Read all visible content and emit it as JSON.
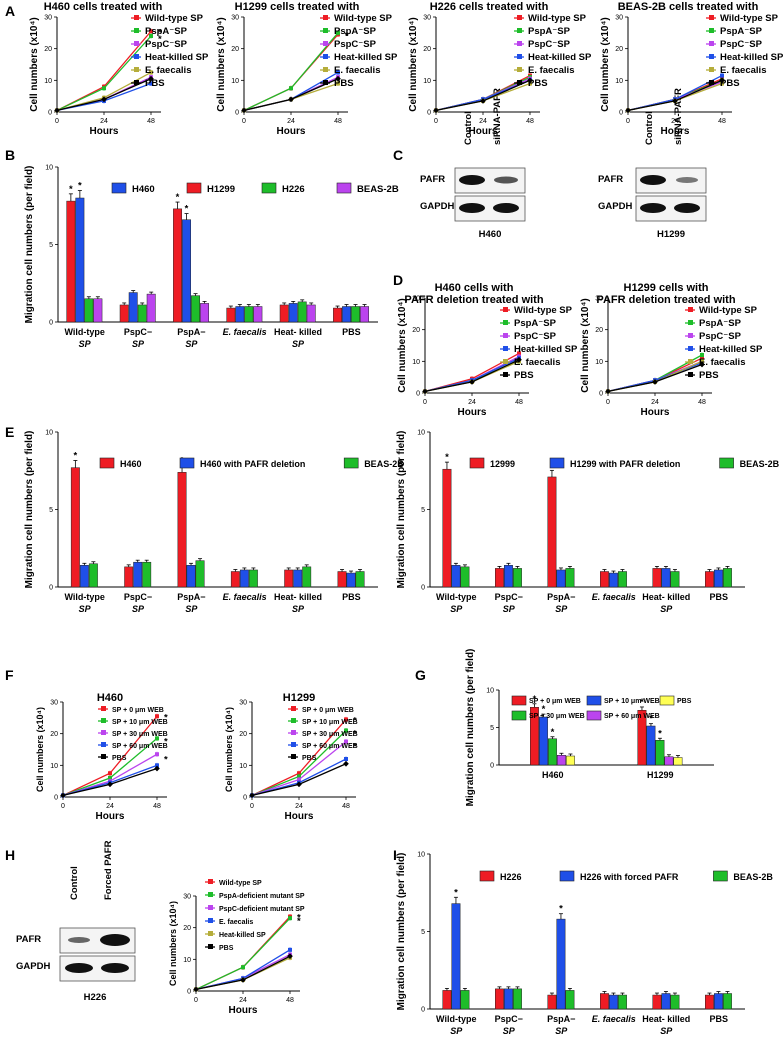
{
  "figure_labels": {
    "A": "A",
    "B": "B",
    "C": "C",
    "D": "D",
    "E": "E",
    "F": "F",
    "G": "G",
    "H": "H",
    "I": "I"
  },
  "colors": {
    "red": "#ee1c24",
    "blue": "#1f4fe8",
    "green": "#1ebd2a",
    "purple": "#bb44ee",
    "yellow": "#d4c21a",
    "olive": "#b5ad3a",
    "black": "#000000",
    "pale_yellow": "#ffff55"
  },
  "blots": {
    "c1": {
      "header": [
        "Control",
        "siRNA-PAFR"
      ],
      "rows": [
        "PAFR",
        "GAPDH"
      ],
      "caption": "H460"
    },
    "c2": {
      "header": [
        "Control",
        "siRNA-PAFR"
      ],
      "rows": [
        "PAFR",
        "GAPDH"
      ],
      "caption": "H1299"
    },
    "h": {
      "header": [
        "Control",
        "Forced PAFR"
      ],
      "rows": [
        "PAFR",
        "GAPDH"
      ],
      "caption": "H226"
    }
  },
  "chart_data": [
    {
      "id": "A1",
      "type": "line",
      "title": "H460 cells treated with",
      "xlabel": "Hours",
      "ylabel": "Cell numbers (x10⁴)",
      "x": [
        0,
        24,
        48
      ],
      "xlim": [
        0,
        48
      ],
      "ylim": [
        0,
        30
      ],
      "yticks": [
        0,
        10,
        20,
        30
      ],
      "series": [
        {
          "name": "Wild-type SP",
          "color": "red",
          "values": [
            0.5,
            8,
            25.5
          ],
          "sig": true
        },
        {
          "name": "PspA⁻SP",
          "color": "green",
          "values": [
            0.5,
            7.5,
            24
          ],
          "sig": true
        },
        {
          "name": "PspC⁻SP",
          "color": "purple",
          "values": [
            0.5,
            4,
            11
          ]
        },
        {
          "name": "Heat-killed SP",
          "color": "blue",
          "values": [
            0.5,
            3.5,
            9
          ]
        },
        {
          "name": "E. faecalis",
          "color": "olive",
          "values": [
            0.5,
            4.5,
            12.5
          ]
        },
        {
          "name": "PBS",
          "color": "black",
          "values": [
            0.5,
            4,
            10.5
          ]
        }
      ]
    },
    {
      "id": "A2",
      "type": "line",
      "title": "H1299 cells treated with",
      "xlabel": "Hours",
      "ylabel": "Cell numbers (x10⁴)",
      "x": [
        0,
        24,
        48
      ],
      "xlim": [
        0,
        48
      ],
      "ylim": [
        0,
        30
      ],
      "yticks": [
        0,
        10,
        20,
        30
      ],
      "series": [
        {
          "name": "Wild-type SP",
          "color": "red",
          "values": [
            0.5,
            7.5,
            24.5
          ],
          "sig": true
        },
        {
          "name": "PspA⁻SP",
          "color": "green",
          "values": [
            0.5,
            7.5,
            25
          ],
          "sig": true
        },
        {
          "name": "PspC⁻SP",
          "color": "purple",
          "values": [
            0.5,
            4,
            11
          ]
        },
        {
          "name": "Heat-killed SP",
          "color": "blue",
          "values": [
            0.5,
            4,
            12.5
          ]
        },
        {
          "name": "E. faecalis",
          "color": "olive",
          "values": [
            0.5,
            4,
            9
          ]
        },
        {
          "name": "PBS",
          "color": "black",
          "values": [
            0.5,
            4,
            10.5
          ]
        }
      ]
    },
    {
      "id": "A3",
      "type": "line",
      "title": "H226 cells treated with",
      "xlabel": "Hours",
      "ylabel": "Cell numbers (x10⁴)",
      "x": [
        0,
        24,
        48
      ],
      "xlim": [
        0,
        48
      ],
      "ylim": [
        0,
        30
      ],
      "yticks": [
        0,
        10,
        20,
        30
      ],
      "series": [
        {
          "name": "Wild-type SP",
          "color": "red",
          "values": [
            0.5,
            4,
            11.5
          ]
        },
        {
          "name": "PspA⁻SP",
          "color": "green",
          "values": [
            0.5,
            4,
            11
          ]
        },
        {
          "name": "PspC⁻SP",
          "color": "purple",
          "values": [
            0.5,
            4,
            10.5
          ]
        },
        {
          "name": "Heat-killed SP",
          "color": "blue",
          "values": [
            0.5,
            4,
            10
          ]
        },
        {
          "name": "E. faecalis",
          "color": "olive",
          "values": [
            0.5,
            3.5,
            9
          ]
        },
        {
          "name": "PBS",
          "color": "black",
          "values": [
            0.5,
            3.5,
            10
          ]
        }
      ]
    },
    {
      "id": "A4",
      "type": "line",
      "title": "BEAS-2B cells treated with",
      "xlabel": "Hours",
      "ylabel": "Cell numbers (x10⁴)",
      "x": [
        0,
        24,
        48
      ],
      "xlim": [
        0,
        48
      ],
      "ylim": [
        0,
        30
      ],
      "yticks": [
        0,
        10,
        20,
        30
      ],
      "series": [
        {
          "name": "Wild-type SP",
          "color": "red",
          "values": [
            0.5,
            4,
            10.5
          ]
        },
        {
          "name": "PspA⁻SP",
          "color": "green",
          "values": [
            0.5,
            4,
            10
          ]
        },
        {
          "name": "PspC⁻SP",
          "color": "purple",
          "values": [
            0.5,
            4,
            9.5
          ]
        },
        {
          "name": "Heat-killed SP",
          "color": "blue",
          "values": [
            0.5,
            4,
            11.5
          ]
        },
        {
          "name": "E. faecalis",
          "color": "olive",
          "values": [
            0.5,
            3.5,
            9
          ]
        },
        {
          "name": "PBS",
          "color": "black",
          "values": [
            0.5,
            3.5,
            10
          ]
        }
      ]
    },
    {
      "id": "B",
      "type": "bar",
      "ylabel": "Migration cell numbers (per field)",
      "ylim": [
        0,
        10
      ],
      "yticks": [
        0,
        5,
        10
      ],
      "categories": [
        "Wild-type SP",
        "PspC− SP",
        "PspA− SP",
        "E. faecalis",
        "Heat- killed SP",
        "PBS"
      ],
      "series": [
        {
          "name": "H460",
          "color": "blue",
          "values": [
            8.0,
            1.9,
            6.6,
            1.0,
            1.2,
            1.0
          ],
          "sig": [
            true,
            false,
            true,
            false,
            false,
            false
          ]
        },
        {
          "name": "H1299",
          "color": "red",
          "values": [
            7.8,
            1.1,
            7.3,
            0.9,
            1.1,
            0.9
          ],
          "sig": [
            true,
            false,
            true,
            false,
            false,
            false
          ]
        },
        {
          "name": "H226",
          "color": "green",
          "values": [
            1.5,
            1.1,
            1.7,
            1.0,
            1.3,
            1.0
          ]
        },
        {
          "name": "BEAS-2B",
          "color": "purple",
          "values": [
            1.5,
            1.8,
            1.2,
            1.0,
            1.1,
            1.0
          ]
        }
      ],
      "draw_order": [
        "H1299",
        "H460",
        "H226",
        "BEAS-2B"
      ],
      "legend": "top"
    },
    {
      "id": "D1",
      "type": "line",
      "title": "H460 cells with PAFR deletion treated with",
      "xlabel": "Hours",
      "ylabel": "Cell numbers (x10⁴)",
      "x": [
        0,
        24,
        48
      ],
      "xlim": [
        0,
        48
      ],
      "ylim": [
        0,
        30
      ],
      "yticks": [
        0,
        10,
        20,
        30
      ],
      "series": [
        {
          "name": "Wild-type SP",
          "color": "red",
          "values": [
            0.5,
            4.5,
            12.5
          ]
        },
        {
          "name": "PspA⁻SP",
          "color": "green",
          "values": [
            0.5,
            4,
            10
          ]
        },
        {
          "name": "PspC⁻SP",
          "color": "purple",
          "values": [
            0.5,
            4,
            11.5
          ]
        },
        {
          "name": "Heat-killed SP",
          "color": "blue",
          "values": [
            0.5,
            4,
            11
          ]
        },
        {
          "name": "E. faecalis",
          "color": "olive",
          "values": [
            0.5,
            3.5,
            10
          ]
        },
        {
          "name": "PBS",
          "color": "black",
          "values": [
            0.5,
            3.5,
            10.5
          ]
        }
      ]
    },
    {
      "id": "D2",
      "type": "line",
      "title": "H1299 cells with PAFR deletion treated with",
      "xlabel": "Hours",
      "ylabel": "Cell numbers (x10⁴)",
      "x": [
        0,
        24,
        48
      ],
      "xlim": [
        0,
        48
      ],
      "ylim": [
        0,
        30
      ],
      "yticks": [
        0,
        10,
        20,
        30
      ],
      "series": [
        {
          "name": "Wild-type SP",
          "color": "red",
          "values": [
            0.5,
            4,
            11
          ]
        },
        {
          "name": "PspA⁻SP",
          "color": "green",
          "values": [
            0.5,
            4,
            12
          ]
        },
        {
          "name": "PspC⁻SP",
          "color": "purple",
          "values": [
            0.5,
            4,
            10
          ]
        },
        {
          "name": "Heat-killed SP",
          "color": "blue",
          "values": [
            0.5,
            4,
            9.5
          ]
        },
        {
          "name": "E. faecalis",
          "color": "olive",
          "values": [
            0.5,
            3.5,
            10
          ]
        },
        {
          "name": "PBS",
          "color": "black",
          "values": [
            0.5,
            3.5,
            9
          ]
        }
      ]
    },
    {
      "id": "E1",
      "type": "bar",
      "ylabel": "Migration cell numbers (per field)",
      "ylim": [
        0,
        10
      ],
      "yticks": [
        0,
        5,
        10
      ],
      "categories": [
        "Wild-type SP",
        "PspC− SP",
        "PspA− SP",
        "E. faecalis",
        "Heat- killed SP",
        "PBS"
      ],
      "series": [
        {
          "name": "H460",
          "color": "red",
          "values": [
            7.7,
            1.3,
            7.4,
            1.0,
            1.1,
            1.0
          ],
          "sig": [
            true,
            false,
            true,
            false,
            false,
            false
          ]
        },
        {
          "name": "H460 with PAFR deletion",
          "color": "blue",
          "values": [
            1.4,
            1.6,
            1.4,
            1.1,
            1.1,
            0.9
          ]
        },
        {
          "name": "BEAS-2B",
          "color": "green",
          "values": [
            1.5,
            1.6,
            1.7,
            1.1,
            1.3,
            1.0
          ]
        }
      ],
      "legend": "top"
    },
    {
      "id": "E2",
      "type": "bar",
      "ylabel": "Migration cell numbers (per field)",
      "ylim": [
        0,
        10
      ],
      "yticks": [
        0,
        5,
        10
      ],
      "categories": [
        "Wild-type SP",
        "PspC− SP",
        "PspA− SP",
        "E. faecalis",
        "Heat- killed SP",
        "PBS"
      ],
      "series": [
        {
          "name": "12999",
          "color": "red",
          "values": [
            7.6,
            1.2,
            7.1,
            1.0,
            1.2,
            1.0
          ],
          "sig": [
            true,
            false,
            true,
            false,
            false,
            false
          ]
        },
        {
          "name": "H1299 with PAFR deletion",
          "color": "blue",
          "values": [
            1.4,
            1.4,
            1.1,
            0.9,
            1.2,
            1.1
          ]
        },
        {
          "name": "BEAS-2B",
          "color": "green",
          "values": [
            1.3,
            1.2,
            1.2,
            1.0,
            1.0,
            1.2
          ]
        }
      ],
      "legend": "top"
    },
    {
      "id": "F1",
      "type": "line",
      "title": "H460",
      "xlabel": "Hours",
      "ylabel": "Cell numbers (x10⁴)",
      "x": [
        0,
        24,
        48
      ],
      "xlim": [
        0,
        48
      ],
      "ylim": [
        0,
        30
      ],
      "yticks": [
        0,
        10,
        20,
        30
      ],
      "series": [
        {
          "name": "SP + 0 μm WEB",
          "color": "red",
          "values": [
            0.5,
            7.5,
            25.5
          ],
          "sig": true
        },
        {
          "name": "SP + 10 μm WEB",
          "color": "green",
          "values": [
            0.5,
            6,
            18.5
          ],
          "sig": true
        },
        {
          "name": "SP + 30 μm WEB",
          "color": "purple",
          "values": [
            0.5,
            5,
            13.5
          ],
          "sig": true
        },
        {
          "name": "SP + 60 μm WEB",
          "color": "blue",
          "values": [
            0.5,
            4.5,
            10
          ]
        },
        {
          "name": "PBS",
          "color": "black",
          "values": [
            0.5,
            4,
            9
          ]
        }
      ]
    },
    {
      "id": "F2",
      "type": "line",
      "title": "H1299",
      "xlabel": "Hours",
      "ylabel": "Cell numbers (x10⁴)",
      "x": [
        0,
        24,
        48
      ],
      "xlim": [
        0,
        48
      ],
      "ylim": [
        0,
        30
      ],
      "yticks": [
        0,
        10,
        20,
        30
      ],
      "series": [
        {
          "name": "SP + 0 μm WEB",
          "color": "red",
          "values": [
            0.5,
            7.5,
            24.5
          ],
          "sig": true
        },
        {
          "name": "SP + 10 μm WEB",
          "color": "green",
          "values": [
            0.5,
            6.5,
            21
          ],
          "sig": true
        },
        {
          "name": "SP + 30 μm WEB",
          "color": "purple",
          "values": [
            0.5,
            5.5,
            17.5
          ],
          "sig": true
        },
        {
          "name": "SP + 60 μm WEB",
          "color": "blue",
          "values": [
            0.5,
            4.5,
            12
          ]
        },
        {
          "name": "PBS",
          "color": "black",
          "values": [
            0.5,
            4,
            10.5
          ]
        }
      ]
    },
    {
      "id": "G",
      "type": "bar",
      "ylabel": "Migration cell numbers (per field)",
      "ylim": [
        0,
        10
      ],
      "yticks": [
        0,
        5,
        10
      ],
      "categories": [
        "H460",
        "H1299"
      ],
      "series": [
        {
          "name": "SP + 0 μm WEB",
          "color": "red",
          "values": [
            7.7,
            7.3
          ],
          "sig": [
            true,
            true
          ]
        },
        {
          "name": "SP + 10 μm WEB",
          "color": "blue",
          "values": [
            6.4,
            5.2
          ],
          "sig": [
            true,
            true
          ]
        },
        {
          "name": "SP + 30 μm WEB",
          "color": "green",
          "values": [
            3.5,
            3.3
          ],
          "sig": [
            true,
            true
          ]
        },
        {
          "name": "SP + 60 μm WEB",
          "color": "purple",
          "values": [
            1.3,
            1.1
          ]
        },
        {
          "name": "PBS",
          "color": "pale_yellow",
          "values": [
            1.2,
            1.0
          ]
        }
      ],
      "legend": "top"
    },
    {
      "id": "H",
      "type": "line",
      "xlabel": "Hours",
      "ylabel": "Cell numbers (x10⁴)",
      "x": [
        0,
        24,
        48
      ],
      "xlim": [
        0,
        48
      ],
      "ylim": [
        0,
        30
      ],
      "yticks": [
        0,
        10,
        20,
        30
      ],
      "series": [
        {
          "name": "Wild-type SP",
          "color": "red",
          "values": [
            0.5,
            7.5,
            23.5
          ],
          "sig": true
        },
        {
          "name": "PspA-deficient mutant SP",
          "color": "green",
          "values": [
            0.5,
            7.5,
            23
          ],
          "sig": true
        },
        {
          "name": "PspC-deficient mutant SP",
          "color": "purple",
          "values": [
            0.5,
            4,
            11.5
          ]
        },
        {
          "name": "E. faecalis",
          "color": "blue",
          "values": [
            0.5,
            4,
            13
          ]
        },
        {
          "name": "Heat-killed SP",
          "color": "olive",
          "values": [
            0.5,
            3.5,
            10.5
          ]
        },
        {
          "name": "PBS",
          "color": "black",
          "values": [
            0.5,
            3.5,
            11
          ]
        }
      ]
    },
    {
      "id": "I",
      "type": "bar",
      "ylabel": "Migration cell numbers (per field)",
      "ylim": [
        0,
        10
      ],
      "yticks": [
        0,
        5,
        10
      ],
      "categories": [
        "Wild-type SP",
        "PspC− SP",
        "PspA− SP",
        "E. faecalis",
        "Heat- killed SP",
        "PBS"
      ],
      "series": [
        {
          "name": "H226",
          "color": "red",
          "values": [
            1.2,
            1.3,
            0.9,
            1.0,
            0.9,
            0.9
          ]
        },
        {
          "name": "H226 with forced PAFR",
          "color": "blue",
          "values": [
            6.8,
            1.3,
            5.8,
            0.9,
            1.0,
            1.0
          ],
          "sig": [
            true,
            false,
            true,
            false,
            false,
            false
          ]
        },
        {
          "name": "BEAS-2B",
          "color": "green",
          "values": [
            1.2,
            1.3,
            1.2,
            0.9,
            0.9,
            1.0
          ]
        }
      ],
      "legend": "top"
    }
  ]
}
